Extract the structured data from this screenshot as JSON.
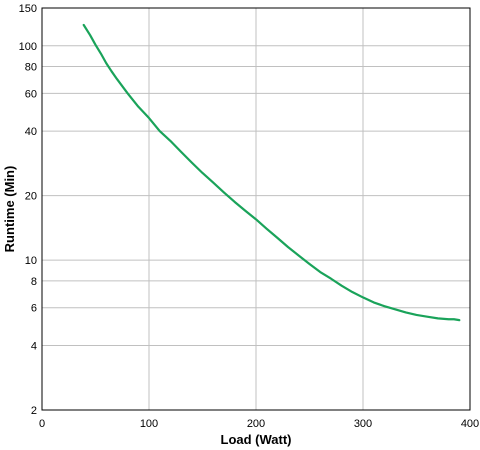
{
  "chart_data": {
    "type": "line",
    "xlabel": "Load (Watt)",
    "ylabel": "Runtime (Min)",
    "xlim": [
      0,
      400
    ],
    "ylim": [
      2,
      150
    ],
    "y_scale": "log",
    "grid": true,
    "legend": "none",
    "line_color": "#1aa35a",
    "x_ticks": [
      0,
      100,
      200,
      300,
      400
    ],
    "x_tick_labels": [
      "0",
      "100",
      "200",
      "300",
      "400"
    ],
    "y_ticks": [
      2,
      4,
      6,
      8,
      10,
      20,
      40,
      60,
      80,
      100,
      150
    ],
    "y_tick_labels": [
      "2",
      "4",
      "6",
      "8",
      "10",
      "20",
      "40",
      "60",
      "80",
      "100",
      "150"
    ],
    "series": [
      {
        "x": [
          39,
          45,
          50,
          55,
          60,
          65,
          70,
          80,
          90,
          100,
          110,
          120,
          130,
          140,
          150,
          160,
          170,
          180,
          190,
          200,
          210,
          220,
          230,
          240,
          250,
          260,
          270,
          280,
          290,
          300,
          310,
          320,
          330,
          340,
          350,
          360,
          370,
          380,
          385,
          390
        ],
        "y": [
          125,
          112,
          101,
          92,
          83,
          76,
          70,
          60,
          52,
          46,
          40,
          36,
          32,
          28.5,
          25.5,
          23,
          20.7,
          18.7,
          17,
          15.5,
          14,
          12.7,
          11.5,
          10.5,
          9.6,
          8.8,
          8.2,
          7.6,
          7.1,
          6.7,
          6.35,
          6.1,
          5.9,
          5.7,
          5.55,
          5.45,
          5.35,
          5.3,
          5.3,
          5.25
        ]
      }
    ]
  }
}
